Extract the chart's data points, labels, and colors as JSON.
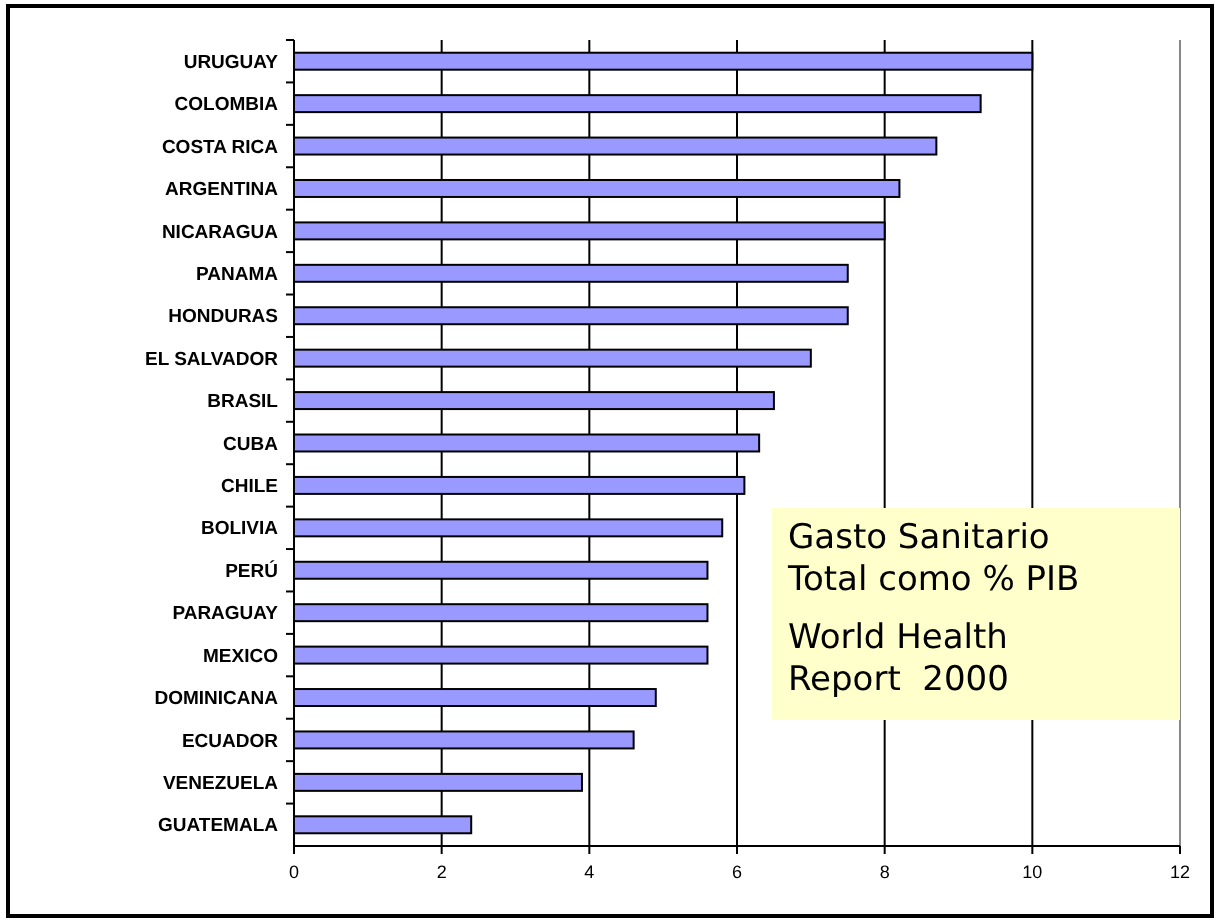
{
  "chart_data": {
    "type": "bar",
    "orientation": "horizontal",
    "categories": [
      "URUGUAY",
      "COLOMBIA",
      "COSTA RICA",
      "ARGENTINA",
      "NICARAGUA",
      "PANAMA",
      "HONDURAS",
      "EL SALVADOR",
      "BRASIL",
      "CUBA",
      "CHILE",
      "BOLIVIA",
      "PERÚ",
      "PARAGUAY",
      "MEXICO",
      "DOMINICANA",
      "ECUADOR",
      "VENEZUELA",
      "GUATEMALA"
    ],
    "values": [
      10.0,
      9.3,
      8.7,
      8.2,
      8.0,
      7.5,
      7.5,
      7.0,
      6.5,
      6.3,
      6.1,
      5.8,
      5.6,
      5.6,
      5.6,
      4.9,
      4.6,
      3.9,
      2.4
    ],
    "color": "#9999ff",
    "xlim": [
      0,
      12
    ],
    "xticks": [
      0,
      2,
      4,
      6,
      8,
      10,
      12
    ],
    "grid": "x",
    "annotations": [
      "Gasto Sanitario Total como % PIB",
      "World Health Report  2000"
    ]
  }
}
